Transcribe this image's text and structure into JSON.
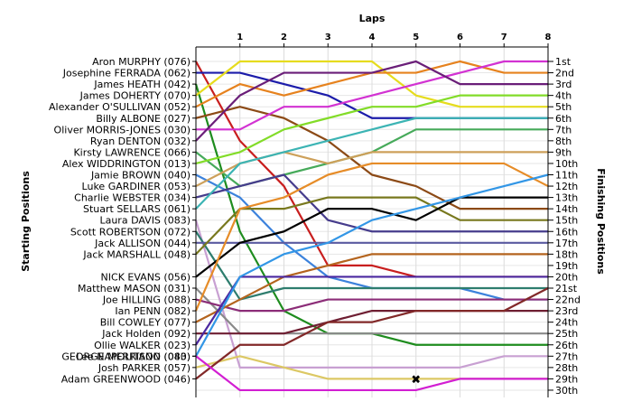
{
  "chart_data": {
    "type": "line",
    "x_axis_title": "Laps",
    "left_axis_title": "Starting Positions",
    "right_axis_title": "Finishing Positions",
    "laps": [
      0,
      1,
      2,
      3,
      4,
      5,
      6,
      7,
      8
    ],
    "lap_labels": [
      "1",
      "2",
      "3",
      "4",
      "5",
      "6",
      "7",
      "8"
    ],
    "position_labels": [
      "1st",
      "2nd",
      "3rd",
      "4th",
      "5th",
      "6th",
      "7th",
      "8th",
      "9th",
      "10th",
      "11th",
      "12th",
      "13th",
      "14th",
      "15th",
      "16th",
      "17th",
      "18th",
      "19th",
      "20th",
      "21st",
      "22nd",
      "23rd",
      "24th",
      "25th",
      "26th",
      "27th",
      "28th",
      "29th",
      "30th"
    ],
    "retired_marker": "✖",
    "series": [
      {
        "name": "Aron MURPHY (076)",
        "color": "#c81e1e",
        "positions": [
          1,
          8,
          12,
          19,
          19,
          20,
          20,
          20,
          20
        ]
      },
      {
        "name": "Josephine FERRADA (062)",
        "color": "#1c1caa",
        "positions": [
          2,
          2,
          3,
          4,
          6,
          6,
          6,
          6,
          6
        ]
      },
      {
        "name": "James HEATH (042)",
        "color": "#1e8c1e",
        "positions": [
          3,
          16,
          23,
          25,
          25,
          26,
          26,
          26,
          26
        ]
      },
      {
        "name": "James DOHERTY (070)",
        "color": "#e6dc1e",
        "positions": [
          4,
          1,
          1,
          1,
          1,
          4,
          5,
          5,
          5
        ]
      },
      {
        "name": "Alexander O'SULLIVAN (052)",
        "color": "#e6821e",
        "positions": [
          5,
          3,
          4,
          3,
          2,
          2,
          1,
          2,
          2
        ]
      },
      {
        "name": "Billy ALBONE (027)",
        "color": "#8c4a16",
        "positions": [
          6,
          5,
          6,
          8,
          11,
          12,
          14,
          14,
          14
        ]
      },
      {
        "name": "Oliver MORRIS-JONES (030)",
        "color": "#d232d2",
        "positions": [
          7,
          7,
          5,
          5,
          4,
          3,
          2,
          1,
          1
        ]
      },
      {
        "name": "Ryan DENTON (032)",
        "color": "#6a1e78",
        "positions": [
          8,
          4,
          2,
          2,
          2,
          1,
          3,
          3,
          3
        ]
      },
      {
        "name": "Kirsty LAWRENCE (066)",
        "color": "#46aa5a",
        "positions": [
          9,
          12,
          11,
          10,
          9,
          7,
          7,
          7,
          7
        ]
      },
      {
        "name": "Alex WIDDRINGTON (013)",
        "color": "#82dc28",
        "positions": [
          10,
          9,
          7,
          6,
          5,
          5,
          4,
          4,
          4
        ]
      },
      {
        "name": "Jamie BROWN (040)",
        "color": "#3c82dc",
        "positions": [
          11,
          13,
          17,
          20,
          21,
          21,
          21,
          22,
          22
        ]
      },
      {
        "name": "Luke GARDINER (053)",
        "color": "#cda05a",
        "positions": [
          12,
          10,
          9,
          10,
          9,
          9,
          9,
          9,
          9
        ]
      },
      {
        "name": "Charlie WEBSTER (034)",
        "color": "#463c8c",
        "positions": [
          13,
          12,
          11,
          15,
          16,
          16,
          16,
          16,
          16
        ]
      },
      {
        "name": "Stuart SELLARS (061)",
        "color": "#3cb4b4",
        "positions": [
          14,
          10,
          9,
          8,
          7,
          6,
          6,
          6,
          6
        ]
      },
      {
        "name": "Laura DAVIS (083)",
        "color": "#c8a0d2",
        "positions": [
          15,
          28,
          28,
          28,
          28,
          28,
          28,
          27,
          27
        ]
      },
      {
        "name": "Scott ROBERTSON (072)",
        "color": "#2e7d6e",
        "positions": [
          16,
          22,
          21,
          21,
          21,
          21,
          21,
          21,
          21
        ]
      },
      {
        "name": "Jack ALLISON (044)",
        "color": "#5a5aa0",
        "positions": [
          17,
          17,
          17,
          17,
          17,
          17,
          17,
          17,
          17
        ]
      },
      {
        "name": "Jack MARSHALL (048)",
        "color": "#78781e",
        "positions": [
          18,
          14,
          14,
          13,
          13,
          13,
          15,
          15,
          15
        ]
      },
      {
        "name": "NICK EVANS (056)",
        "color": "#000000",
        "positions": [
          20,
          17,
          16,
          14,
          14,
          15,
          13,
          13,
          13
        ]
      },
      {
        "name": "Matthew MASON (031)",
        "color": "#8a8a8a",
        "positions": [
          21,
          25,
          25,
          25,
          25,
          25,
          25,
          25,
          25
        ]
      },
      {
        "name": "Joe HILLING (088)",
        "color": "#8c2d78",
        "positions": [
          22,
          23,
          23,
          22,
          22,
          22,
          22,
          22,
          22
        ]
      },
      {
        "name": "Ian PENN (082)",
        "color": "#e68c28",
        "positions": [
          23,
          14,
          13,
          11,
          10,
          10,
          10,
          10,
          12
        ]
      },
      {
        "name": "Bill COWLEY (077)",
        "color": "#b4641e",
        "positions": [
          24,
          22,
          20,
          19,
          18,
          18,
          18,
          18,
          18
        ]
      },
      {
        "name": "Jack Holden (092)",
        "color": "#6e1e32",
        "positions": [
          25,
          25,
          25,
          24,
          23,
          23,
          23,
          23,
          23
        ]
      },
      {
        "name": "Ollie WALKER (023)",
        "color": "#4b28a0",
        "positions": [
          26,
          20,
          20,
          20,
          20,
          20,
          20,
          20,
          20
        ]
      },
      {
        "name": "Lee NAPOLITANO (043)",
        "color": "#3296e6",
        "positions": [
          27,
          20,
          18,
          17,
          15,
          14,
          13,
          12,
          11
        ]
      },
      {
        "name": "Josh PARKER (057)",
        "color": "#dcc864",
        "positions": [
          28,
          27,
          28,
          29,
          29,
          29,
          29,
          29,
          29
        ]
      },
      {
        "name": "Adam GREENWOOD (046)",
        "color": "#822828",
        "positions": [
          29,
          26,
          26,
          24,
          24,
          23,
          23,
          23,
          21
        ]
      },
      {
        "name": "GEORGE MERRISON (080)",
        "color": "#d21ed2",
        "positions": [
          27,
          30,
          30,
          30,
          30,
          30,
          29,
          29,
          29
        ]
      }
    ],
    "retired": [
      {
        "name": "Josh PARKER (057)",
        "lap": 5,
        "position": 29
      }
    ]
  }
}
